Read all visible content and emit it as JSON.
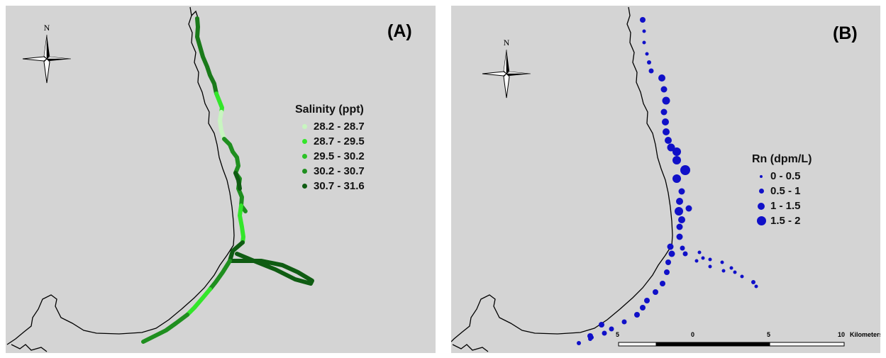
{
  "panel_a": {
    "label": "(A)",
    "north_label": "N",
    "legend": {
      "title": "Salinity (ppt)",
      "items": [
        {
          "label": "28.2 - 28.7",
          "color": "#c8f5c0"
        },
        {
          "label": "28.7 - 29.5",
          "color": "#33e62a"
        },
        {
          "label": "29.5 - 30.2",
          "color": "#2cc227"
        },
        {
          "label": "30.2 - 30.7",
          "color": "#1f8f1f"
        },
        {
          "label": "30.7 - 31.6",
          "color": "#0f5c12"
        }
      ]
    }
  },
  "panel_b": {
    "label": "(B)",
    "north_label": "N",
    "legend": {
      "title": "Rn (dpm/L)",
      "items": [
        {
          "label": "0 - 0.5"
        },
        {
          "label": "0.5 - 1"
        },
        {
          "label": "1 - 1.5"
        },
        {
          "label": "1.5 - 2"
        }
      ],
      "color": "#1010c8"
    },
    "scale_bar": {
      "ticks": [
        "5",
        "0",
        "5",
        "10"
      ],
      "units": "Kilometers"
    }
  },
  "colors": {
    "land_water": "#d4d4d4",
    "coastline": "#000000"
  }
}
